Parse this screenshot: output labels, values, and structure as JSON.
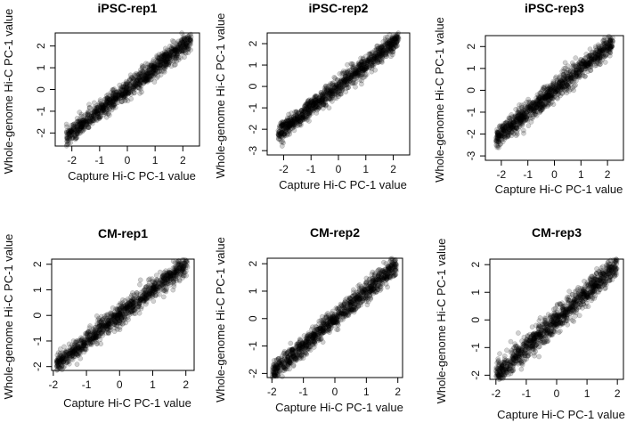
{
  "chart_data": [
    {
      "type": "scatter",
      "title": "iPSC-rep1",
      "xlabel": "Capture Hi-C PC-1 value",
      "ylabel": "Whole-genome Hi-C PC-1 value",
      "xlim": [
        -2.6,
        2.6
      ],
      "ylim": [
        -2.6,
        2.6
      ],
      "xticks": [
        -2,
        -1,
        0,
        1,
        2
      ],
      "yticks": [
        -2,
        -1,
        0,
        1,
        2
      ],
      "trend": {
        "x_range": [
          -2.2,
          2.3
        ],
        "slope": 1.0,
        "intercept": 0.0,
        "spread": 0.22
      },
      "point_color": "#000000",
      "point_alpha": 0.18
    },
    {
      "type": "scatter",
      "title": "iPSC-rep2",
      "xlabel": "Capture Hi-C PC-1 value",
      "ylabel": "Whole-genome Hi-C PC-1 value",
      "xlim": [
        -2.6,
        2.6
      ],
      "ylim": [
        -3.2,
        2.5
      ],
      "xticks": [
        -2,
        -1,
        0,
        1,
        2
      ],
      "yticks": [
        -3,
        -2,
        -1,
        0,
        1,
        2
      ],
      "trend": {
        "x_range": [
          -2.2,
          2.2
        ],
        "slope": 1.0,
        "intercept": 0.0,
        "spread": 0.22
      },
      "point_color": "#000000",
      "point_alpha": 0.18
    },
    {
      "type": "scatter",
      "title": "iPSC-rep3",
      "xlabel": "Capture Hi-C PC-1 value",
      "ylabel": "Whole-genome Hi-C PC-1 value",
      "xlim": [
        -2.6,
        2.6
      ],
      "ylim": [
        -3.2,
        2.5
      ],
      "xticks": [
        -2,
        -1,
        0,
        1,
        2
      ],
      "yticks": [
        -3,
        -2,
        -1,
        0,
        1,
        2
      ],
      "trend": {
        "x_range": [
          -2.2,
          2.2
        ],
        "slope": 1.0,
        "intercept": 0.0,
        "spread": 0.24
      },
      "point_color": "#000000",
      "point_alpha": 0.18
    },
    {
      "type": "scatter",
      "title": "CM-rep1",
      "xlabel": "Capture Hi-C PC-1 value",
      "ylabel": "Whole-genome Hi-C PC-1 value",
      "xlim": [
        -2.05,
        2.25
      ],
      "ylim": [
        -2.15,
        2.2
      ],
      "xticks": [
        -2,
        -1,
        0,
        1,
        2
      ],
      "yticks": [
        -2,
        -1,
        0,
        1,
        2
      ],
      "trend": {
        "x_range": [
          -1.9,
          2.05
        ],
        "slope": 1.0,
        "intercept": 0.0,
        "spread": 0.2
      },
      "point_color": "#000000",
      "point_alpha": 0.18
    },
    {
      "type": "scatter",
      "title": "CM-rep2",
      "xlabel": "Capture Hi-C PC-1 value",
      "ylabel": "Whole-genome Hi-C PC-1 value",
      "xlim": [
        -2.15,
        2.15
      ],
      "ylim": [
        -2.15,
        2.2
      ],
      "xticks": [
        -2,
        -1,
        0,
        1,
        2
      ],
      "yticks": [
        -2,
        -1,
        0,
        1,
        2
      ],
      "trend": {
        "x_range": [
          -2.0,
          1.95
        ],
        "slope": 1.0,
        "intercept": 0.0,
        "spread": 0.18
      },
      "point_color": "#000000",
      "point_alpha": 0.18
    },
    {
      "type": "scatter",
      "title": "CM-rep3",
      "xlabel": "Capture Hi-C PC-1 value",
      "ylabel": "Whole-genome Hi-C PC-1 value",
      "xlim": [
        -2.2,
        2.2
      ],
      "ylim": [
        -2.15,
        2.2
      ],
      "xticks": [
        -2,
        -1,
        0,
        1,
        2
      ],
      "yticks": [
        -2,
        -1,
        0,
        1,
        2
      ],
      "trend": {
        "x_range": [
          -2.0,
          2.0
        ],
        "slope": 1.0,
        "intercept": 0.0,
        "spread": 0.22
      },
      "point_color": "#000000",
      "point_alpha": 0.18
    }
  ]
}
